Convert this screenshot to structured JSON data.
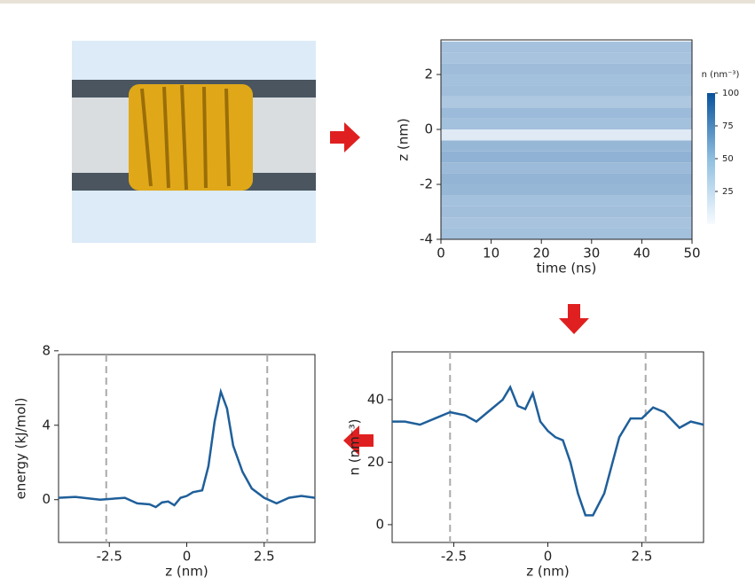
{
  "chart_data": [
    {
      "type": "heatmap",
      "xlabel": "time (ns)",
      "ylabel": "z (nm)",
      "xlim": [
        0,
        50
      ],
      "xticks": [
        0,
        10,
        20,
        30,
        40,
        50
      ],
      "ylim": [
        -4,
        3.26
      ],
      "yticks": [
        -4,
        -2,
        0,
        2
      ],
      "y": [
        -3.8,
        -3.4,
        -3.0,
        -2.6,
        -2.2,
        -1.8,
        -1.4,
        -1.0,
        -0.6,
        -0.2,
        0.2,
        0.6,
        1.0,
        1.4,
        1.8,
        2.2,
        2.6,
        3.0
      ],
      "values": [
        35,
        33,
        36,
        35,
        40,
        42,
        38,
        43,
        40,
        10,
        35,
        38,
        30,
        36,
        35,
        37,
        33,
        34
      ],
      "colorbar": {
        "label": "n (nm⁻³)",
        "lim": [
          0,
          100
        ],
        "ticks": [
          25,
          50,
          75,
          100
        ]
      }
    },
    {
      "type": "line",
      "xlabel": "z (nm)",
      "ylabel": "n (nm⁻³)",
      "xlim": [
        -4.14,
        4.14
      ],
      "xticks": [
        -2.5,
        0,
        2.5
      ],
      "ylim": [
        -5.7,
        55.3
      ],
      "yticks": [
        0,
        20,
        40
      ],
      "vlines": [
        -2.6,
        2.6
      ],
      "color": "#1f5f9a",
      "x": [
        -4.14,
        -3.8,
        -3.4,
        -3.0,
        -2.6,
        -2.2,
        -1.9,
        -1.5,
        -1.2,
        -1.0,
        -0.8,
        -0.6,
        -0.4,
        -0.2,
        0.0,
        0.2,
        0.4,
        0.6,
        0.8,
        1.0,
        1.2,
        1.5,
        1.9,
        2.2,
        2.5,
        2.8,
        3.1,
        3.5,
        3.8,
        4.14
      ],
      "values": [
        33,
        33,
        32,
        34,
        36,
        35,
        33,
        37,
        40,
        44,
        38,
        37,
        42,
        33,
        30,
        28,
        27,
        20,
        10,
        3,
        3,
        10,
        28,
        34,
        34,
        37.5,
        36,
        31,
        33,
        32
      ]
    },
    {
      "type": "line",
      "xlabel": "z (nm)",
      "ylabel": "energy (kJ/mol)",
      "xlim": [
        -4.14,
        4.14
      ],
      "xticks": [
        -2.5,
        0,
        2.5
      ],
      "ylim": [
        -2.3,
        7.8
      ],
      "yticks": [
        0,
        4,
        8
      ],
      "vlines": [
        -2.6,
        2.6
      ],
      "color": "#1f5f9a",
      "x": [
        -4.14,
        -3.6,
        -2.8,
        -2.0,
        -1.6,
        -1.2,
        -1.0,
        -0.8,
        -0.6,
        -0.4,
        -0.2,
        0.0,
        0.2,
        0.5,
        0.7,
        0.9,
        1.1,
        1.3,
        1.5,
        1.8,
        2.1,
        2.5,
        2.9,
        3.3,
        3.7,
        4.14
      ],
      "values": [
        0.1,
        0.15,
        0,
        0.1,
        -0.2,
        -0.25,
        -0.4,
        -0.15,
        -0.1,
        -0.3,
        0.1,
        0.2,
        0.4,
        0.5,
        1.8,
        4.2,
        5.8,
        4.9,
        2.9,
        1.5,
        0.6,
        0.1,
        -0.2,
        0.1,
        0.2,
        0.1
      ]
    }
  ]
}
